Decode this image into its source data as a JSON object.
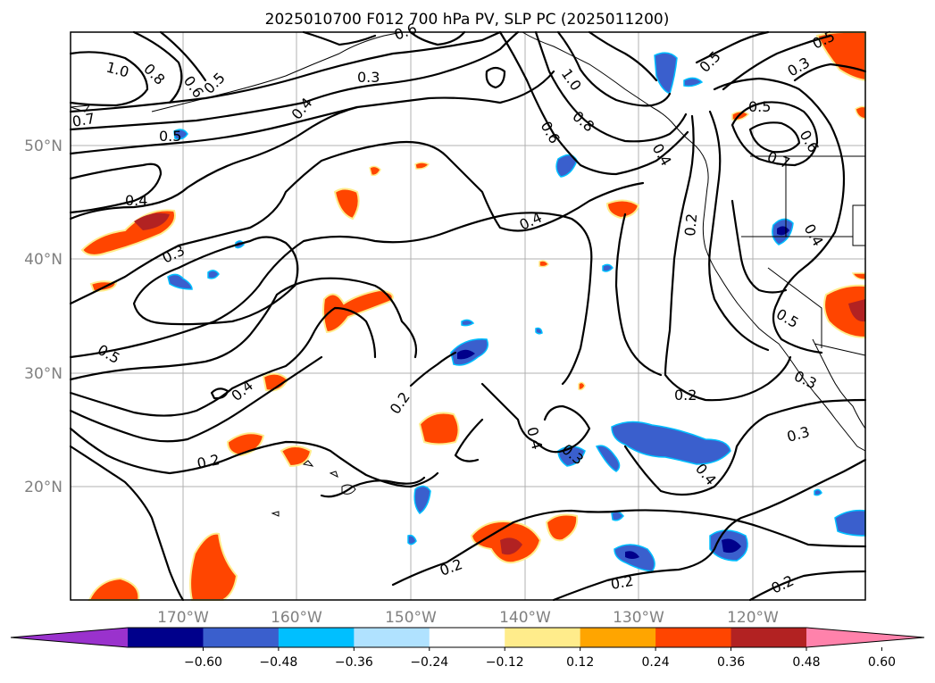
{
  "title": "2025010700 F012 700 hPa PV, SLP PC (2025011200)",
  "map": {
    "lat_labels": [
      "50°N",
      "40°N",
      "30°N",
      "20°N"
    ],
    "lon_labels": [
      "170°W",
      "160°W",
      "150°W",
      "140°W",
      "130°W",
      "120°W"
    ],
    "contour_labels": [
      "1.0",
      "0.8",
      "0.6",
      "0.5",
      "0.7",
      "0.5",
      "0.4",
      "0.3",
      "0.6",
      "0.4",
      "0.3",
      "1.0",
      "0.8",
      "0.6",
      "0.5",
      "0.4",
      "0.2",
      "0.5",
      "0.7",
      "0.6",
      "0.4",
      "0.3",
      "0.5",
      "0.4",
      "0.2",
      "0.4",
      "0.3",
      "0.3",
      "0.2",
      "0.3",
      "0.4",
      "0.2",
      "0.2",
      "0.2",
      "0.2",
      "0.4",
      "0.5",
      "0.5"
    ]
  },
  "colorbar": {
    "ticks": [
      "−0.60",
      "−0.48",
      "−0.36",
      "−0.24",
      "−0.12",
      "0.12",
      "0.24",
      "0.36",
      "0.48",
      "0.60"
    ],
    "colors": [
      "#9a32cd",
      "#00008b",
      "#3a5fcd",
      "#00bfff",
      "#b0e2ff",
      "#ffffff",
      "#ffec8b",
      "#ffa500",
      "#ff4500",
      "#b22222",
      "#ff82ab"
    ]
  }
}
